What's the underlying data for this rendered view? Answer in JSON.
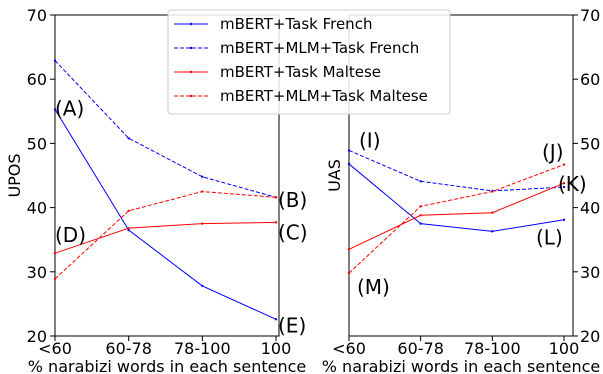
{
  "chart_data": [
    {
      "type": "line",
      "categories": [
        "<60",
        "60-78",
        "78-100",
        "100"
      ],
      "xlabel": "% narabizi words in each sentence",
      "ylabel": "UPOS",
      "ylim": [
        20,
        70
      ],
      "yticks": [
        "20",
        "30",
        "40",
        "50",
        "60",
        "70"
      ],
      "series": [
        {
          "name": "mBERT+Task French",
          "values": [
            55.3,
            36.5,
            27.8,
            22.6
          ],
          "color": "#0000ff",
          "dash": "solid"
        },
        {
          "name": "mBERT+MLM+Task French",
          "values": [
            62.9,
            50.8,
            44.8,
            41.6
          ],
          "color": "#0000ff",
          "dash": "dashed"
        },
        {
          "name": "mBERT+Task Maltese",
          "values": [
            32.9,
            36.8,
            37.5,
            37.7
          ],
          "color": "#ff0000",
          "dash": "solid"
        },
        {
          "name": "mBERT+MLM+Task Maltese",
          "values": [
            28.9,
            39.5,
            42.5,
            41.6
          ],
          "color": "#ff0000",
          "dash": "dashed"
        }
      ],
      "annotations": [
        {
          "text": "(A)",
          "x": "<60",
          "y": 55.3
        },
        {
          "text": "(D)",
          "x": "<60",
          "y": 35.6
        },
        {
          "text": "(B)",
          "x": "100",
          "y": 41.0
        },
        {
          "text": "(C)",
          "x": "100",
          "y": 36.0
        },
        {
          "text": "(E)",
          "x": "100",
          "y": 21.5
        }
      ],
      "legend": "top-center"
    },
    {
      "type": "line",
      "categories": [
        "<60",
        "60-78",
        "78-100",
        "100"
      ],
      "xlabel": "% narabizi words in each sentence",
      "ylabel": "UAS",
      "ylim": [
        20,
        70
      ],
      "yticks": [
        "20",
        "30",
        "40",
        "50",
        "60",
        "70"
      ],
      "series": [
        {
          "name": "mBERT+Task French",
          "values": [
            46.8,
            37.5,
            36.3,
            38.1
          ],
          "color": "#0000ff",
          "dash": "solid"
        },
        {
          "name": "mBERT+MLM+Task French",
          "values": [
            48.9,
            44.1,
            42.6,
            43.2
          ],
          "color": "#0000ff",
          "dash": "dashed"
        },
        {
          "name": "mBERT+Task Maltese",
          "values": [
            33.5,
            38.8,
            39.2,
            43.8
          ],
          "color": "#ff0000",
          "dash": "solid"
        },
        {
          "name": "mBERT+MLM+Task Maltese",
          "values": [
            29.8,
            40.2,
            42.5,
            46.7
          ],
          "color": "#ff0000",
          "dash": "dashed"
        }
      ],
      "annotations": [
        {
          "text": "(I)",
          "x": "<60",
          "y": 50.3
        },
        {
          "text": "(J)",
          "x": "100",
          "y": 48.5
        },
        {
          "text": "(K)",
          "x": "100",
          "y": 43.5
        },
        {
          "text": "(L)",
          "x": "100",
          "y": 35.2
        },
        {
          "text": "(M)",
          "x": "<60",
          "y": 27.5
        }
      ]
    }
  ]
}
